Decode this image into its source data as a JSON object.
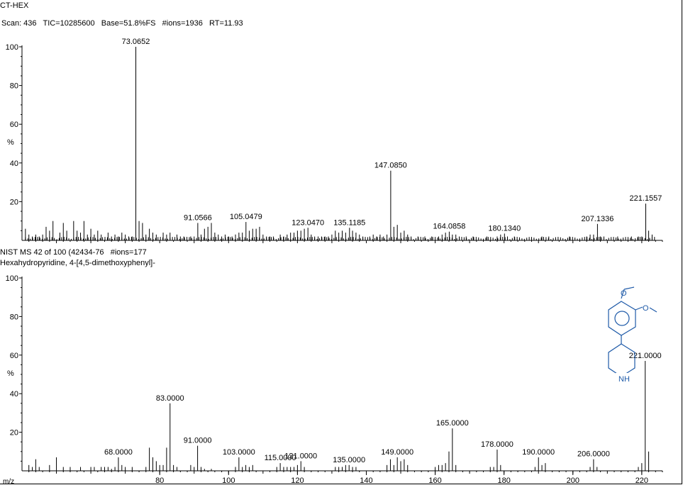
{
  "window_title": "CT-HEX",
  "top_panel": {
    "scan_line": "Scan: 436   TIC=10285600   Base=51.8%FS   #ions=1936   RT=11.93",
    "y_label": "%"
  },
  "bottom_panel": {
    "library_line": "NIST MS 42 of 100 (42434-76   #ions=177",
    "compound_name": "Hexahydropyridine, 4-[4,5-dimethoxyphenyl]-",
    "y_label": "%",
    "x_label": "m/z",
    "structure_labels": {
      "nh": "NH"
    }
  },
  "chart_data": [
    {
      "type": "bar",
      "title": "",
      "xlabel": "",
      "ylabel": "%",
      "xlim": [
        40,
        226
      ],
      "ylim": [
        0,
        100
      ],
      "yticks": [
        20,
        40,
        60,
        80,
        100
      ],
      "color": "#000000",
      "peak_labels": [
        {
          "x": 73.0652,
          "y": 100,
          "text": "73.0652"
        },
        {
          "x": 91.0566,
          "y": 9,
          "text": "91.0566"
        },
        {
          "x": 105.0479,
          "y": 9.5,
          "text": "105.0479"
        },
        {
          "x": 123.047,
          "y": 6.5,
          "text": "123.0470"
        },
        {
          "x": 135.1185,
          "y": 6.5,
          "text": "135.1185"
        },
        {
          "x": 147.085,
          "y": 36,
          "text": "147.0850"
        },
        {
          "x": 164.0858,
          "y": 4.5,
          "text": "164.0858"
        },
        {
          "x": 180.134,
          "y": 3.5,
          "text": "180.1340"
        },
        {
          "x": 207.1336,
          "y": 8.5,
          "text": "207.1336"
        },
        {
          "x": 221.1557,
          "y": 19,
          "text": "221.1557"
        }
      ],
      "peaks": [
        [
          41,
          6
        ],
        [
          42,
          3
        ],
        [
          43,
          2
        ],
        [
          44,
          3
        ],
        [
          45,
          2
        ],
        [
          46,
          3
        ],
        [
          47,
          7
        ],
        [
          48,
          5
        ],
        [
          49,
          10
        ],
        [
          51,
          4
        ],
        [
          52,
          9
        ],
        [
          53,
          5
        ],
        [
          55,
          10
        ],
        [
          56,
          5
        ],
        [
          57,
          4
        ],
        [
          58,
          10
        ],
        [
          59,
          3
        ],
        [
          60,
          6
        ],
        [
          61,
          3
        ],
        [
          62,
          5
        ],
        [
          63,
          3
        ],
        [
          65,
          4
        ],
        [
          66,
          2
        ],
        [
          67,
          3
        ],
        [
          68,
          2
        ],
        [
          69,
          4
        ],
        [
          70,
          3
        ],
        [
          71,
          2
        ],
        [
          72,
          2
        ],
        [
          73.0652,
          100
        ],
        [
          74,
          10
        ],
        [
          75,
          9
        ],
        [
          76,
          3
        ],
        [
          77,
          6
        ],
        [
          78,
          4
        ],
        [
          79,
          3
        ],
        [
          81,
          4
        ],
        [
          82,
          3
        ],
        [
          83,
          4
        ],
        [
          85,
          3
        ],
        [
          86,
          2
        ],
        [
          87,
          2
        ],
        [
          89,
          2
        ],
        [
          90,
          2
        ],
        [
          91.0566,
          9
        ],
        [
          92,
          3
        ],
        [
          93,
          6
        ],
        [
          94,
          7
        ],
        [
          95,
          9
        ],
        [
          96,
          4
        ],
        [
          97,
          3
        ],
        [
          98,
          2
        ],
        [
          99,
          3
        ],
        [
          100,
          2
        ],
        [
          101,
          2
        ],
        [
          102,
          3
        ],
        [
          103,
          4
        ],
        [
          104,
          4
        ],
        [
          105.0479,
          9.5
        ],
        [
          106,
          5
        ],
        [
          107,
          6
        ],
        [
          108,
          6
        ],
        [
          109,
          7
        ],
        [
          110,
          3
        ],
        [
          111,
          2
        ],
        [
          112,
          2
        ],
        [
          113,
          2
        ],
        [
          115,
          3
        ],
        [
          116,
          2
        ],
        [
          117,
          3
        ],
        [
          118,
          4
        ],
        [
          119,
          4
        ],
        [
          120,
          5
        ],
        [
          121,
          5
        ],
        [
          122,
          6
        ],
        [
          123.047,
          6.5
        ],
        [
          124,
          3
        ],
        [
          125,
          2
        ],
        [
          126,
          2
        ],
        [
          127,
          2
        ],
        [
          128,
          2
        ],
        [
          129,
          2
        ],
        [
          130,
          3
        ],
        [
          131,
          5
        ],
        [
          132,
          4
        ],
        [
          133,
          5
        ],
        [
          134,
          4
        ],
        [
          135.1185,
          6.5
        ],
        [
          136,
          5
        ],
        [
          137,
          4
        ],
        [
          138,
          3
        ],
        [
          139,
          2
        ],
        [
          141,
          2
        ],
        [
          142,
          3
        ],
        [
          143,
          2
        ],
        [
          144,
          3
        ],
        [
          145,
          2
        ],
        [
          146,
          3
        ],
        [
          147.085,
          36
        ],
        [
          148,
          7
        ],
        [
          149,
          8
        ],
        [
          150,
          4
        ],
        [
          151,
          5
        ],
        [
          152,
          3
        ],
        [
          153,
          2
        ],
        [
          155,
          2
        ],
        [
          157,
          2
        ],
        [
          159,
          2
        ],
        [
          161,
          2
        ],
        [
          162,
          3
        ],
        [
          163,
          4
        ],
        [
          164.0858,
          4.5
        ],
        [
          165,
          3
        ],
        [
          166,
          3
        ],
        [
          167,
          2
        ],
        [
          169,
          2
        ],
        [
          171,
          2
        ],
        [
          175,
          2
        ],
        [
          178,
          2
        ],
        [
          179,
          3
        ],
        [
          180.134,
          3.5
        ],
        [
          181,
          2
        ],
        [
          183,
          2
        ],
        [
          191,
          2
        ],
        [
          193,
          2
        ],
        [
          199,
          2
        ],
        [
          204,
          2
        ],
        [
          205,
          3
        ],
        [
          206,
          3
        ],
        [
          207.1336,
          8.5
        ],
        [
          208,
          2
        ],
        [
          209,
          2
        ],
        [
          213,
          2
        ],
        [
          217,
          2
        ],
        [
          219,
          2
        ],
        [
          220,
          2
        ],
        [
          221.1557,
          19
        ],
        [
          222,
          5
        ],
        [
          223,
          3
        ]
      ]
    },
    {
      "type": "bar",
      "title": "",
      "xlabel": "m/z",
      "ylabel": "%",
      "xlim": [
        40,
        226
      ],
      "ylim": [
        0,
        100
      ],
      "xticks": [
        80,
        100,
        120,
        140,
        160,
        180,
        200,
        220
      ],
      "yticks": [
        20,
        40,
        60,
        80,
        100
      ],
      "color": "#000000",
      "peak_labels": [
        {
          "x": 68,
          "y": 7,
          "text": "68.0000"
        },
        {
          "x": 83,
          "y": 35,
          "text": "83.0000"
        },
        {
          "x": 91,
          "y": 13,
          "text": "91.0000"
        },
        {
          "x": 103,
          "y": 7,
          "text": "103.0000"
        },
        {
          "x": 115,
          "y": 4,
          "text": "115.0000"
        },
        {
          "x": 121,
          "y": 5,
          "text": "121.0000"
        },
        {
          "x": 135,
          "y": 3,
          "text": "135.0000"
        },
        {
          "x": 149,
          "y": 7,
          "text": "149.0000"
        },
        {
          "x": 165,
          "y": 22,
          "text": "165.0000"
        },
        {
          "x": 178,
          "y": 11,
          "text": "178.0000"
        },
        {
          "x": 190,
          "y": 7,
          "text": "190.0000"
        },
        {
          "x": 206,
          "y": 6,
          "text": "206.0000"
        },
        {
          "x": 221,
          "y": 57,
          "text": "221.0000"
        }
      ],
      "peaks": [
        [
          42,
          3
        ],
        [
          43,
          2
        ],
        [
          44,
          6
        ],
        [
          45,
          2
        ],
        [
          48,
          3
        ],
        [
          50,
          7
        ],
        [
          52,
          2
        ],
        [
          54,
          2
        ],
        [
          57,
          2
        ],
        [
          60,
          2
        ],
        [
          61,
          2
        ],
        [
          63,
          2
        ],
        [
          64,
          2
        ],
        [
          65,
          2
        ],
        [
          66,
          1
        ],
        [
          67,
          2
        ],
        [
          68,
          7
        ],
        [
          69,
          3
        ],
        [
          70,
          2
        ],
        [
          72,
          2
        ],
        [
          76,
          2
        ],
        [
          77,
          12
        ],
        [
          78,
          7
        ],
        [
          79,
          5
        ],
        [
          80,
          3
        ],
        [
          81,
          3
        ],
        [
          82,
          12
        ],
        [
          83,
          35
        ],
        [
          84,
          3
        ],
        [
          85,
          2
        ],
        [
          89,
          3
        ],
        [
          90,
          2
        ],
        [
          91,
          13
        ],
        [
          92,
          2
        ],
        [
          93,
          1
        ],
        [
          95,
          1
        ],
        [
          102,
          2
        ],
        [
          103,
          7
        ],
        [
          104,
          2
        ],
        [
          105,
          3
        ],
        [
          106,
          2
        ],
        [
          107,
          3
        ],
        [
          114,
          2
        ],
        [
          115,
          4
        ],
        [
          116,
          2
        ],
        [
          117,
          2
        ],
        [
          118,
          2
        ],
        [
          119,
          2
        ],
        [
          120,
          3
        ],
        [
          121,
          5
        ],
        [
          122,
          2
        ],
        [
          131,
          2
        ],
        [
          132,
          2
        ],
        [
          133,
          2
        ],
        [
          134,
          3
        ],
        [
          135,
          3
        ],
        [
          136,
          2
        ],
        [
          137,
          2
        ],
        [
          146,
          3
        ],
        [
          147,
          6
        ],
        [
          148,
          3
        ],
        [
          149,
          7
        ],
        [
          150,
          5
        ],
        [
          151,
          6
        ],
        [
          152,
          3
        ],
        [
          160,
          2
        ],
        [
          161,
          3
        ],
        [
          162,
          3
        ],
        [
          163,
          4
        ],
        [
          164,
          10
        ],
        [
          165,
          22
        ],
        [
          166,
          3
        ],
        [
          176,
          2
        ],
        [
          177,
          2
        ],
        [
          178,
          11
        ],
        [
          179,
          3
        ],
        [
          189,
          2
        ],
        [
          190,
          7
        ],
        [
          191,
          3
        ],
        [
          192,
          4
        ],
        [
          205,
          2
        ],
        [
          206,
          6
        ],
        [
          207,
          2
        ],
        [
          219,
          2
        ],
        [
          220,
          4
        ],
        [
          221,
          57
        ],
        [
          222,
          10
        ]
      ]
    }
  ]
}
